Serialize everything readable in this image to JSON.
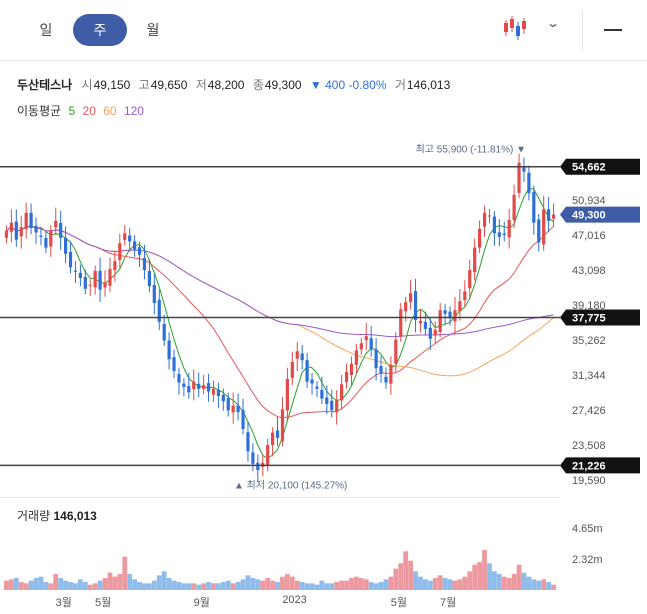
{
  "tabs": [
    {
      "label": "일",
      "active": false
    },
    {
      "label": "주",
      "active": true
    },
    {
      "label": "월",
      "active": false
    }
  ],
  "icons": {
    "chart_type": "candlestick-icon",
    "dropdown": "chevron-down-icon",
    "menu": "minus-icon"
  },
  "quote": {
    "name": "두산테스나",
    "open_label": "시",
    "open": "49,150",
    "high_label": "고",
    "high": "49,650",
    "low_label": "저",
    "low": "48,200",
    "close_label": "종",
    "close": "49,300",
    "change": "▼ 400 -0.80%",
    "volume_label": "거",
    "volume": "146,013"
  },
  "moving_average": {
    "label": "이동평균",
    "periods": [
      {
        "value": "5",
        "color": "#2ca02c"
      },
      {
        "value": "20",
        "color": "#e8575a"
      },
      {
        "value": "60",
        "color": "#f5a35c"
      },
      {
        "value": "120",
        "color": "#9b59d0"
      }
    ]
  },
  "volume_panel": {
    "label": "거래량",
    "value": "146,013",
    "ticks": [
      "4.65m",
      "2.32m"
    ]
  },
  "chart_data": {
    "type": "candlestick",
    "x_ticks": [
      "3월",
      "5월",
      "9월",
      "2023",
      "5월",
      "7월"
    ],
    "y_ticks": [
      "50,934",
      "47,016",
      "43,098",
      "39,180",
      "35,262",
      "31,344",
      "27,426",
      "23,508",
      "19,590"
    ],
    "ylim": [
      19590,
      57000
    ],
    "highlights": [
      {
        "label": "54,662",
        "value": 54662,
        "style": "dark"
      },
      {
        "label": "49,300",
        "value": 49300,
        "style": "blue"
      },
      {
        "label": "37,775",
        "value": 37775,
        "style": "dark"
      },
      {
        "label": "21,226",
        "value": 21226,
        "style": "dark"
      }
    ],
    "annotations": {
      "high": {
        "text": "최고 55,900 (-11.81%)",
        "value": 55900
      },
      "low": {
        "text": "최저 20,100 (145.27%)",
        "value": 20100
      }
    },
    "closes": [
      47500,
      48400,
      46500,
      47900,
      49500,
      47800,
      47300,
      46800,
      45600,
      47500,
      48600,
      46700,
      44900,
      43400,
      42900,
      42200,
      41000,
      41400,
      43000,
      40900,
      41700,
      43200,
      44100,
      46100,
      47200,
      46300,
      45400,
      44800,
      43100,
      41300,
      39400,
      37300,
      35200,
      33100,
      31800,
      30500,
      30000,
      29400,
      30600,
      29800,
      30200,
      29500,
      29800,
      29000,
      28400,
      27400,
      27900,
      27200,
      25300,
      22800,
      21400,
      20700,
      21500,
      23500,
      24900,
      24300,
      27500,
      30900,
      32800,
      34000,
      33000,
      30600,
      30400,
      29800,
      28700,
      28100,
      27400,
      28500,
      30300,
      31700,
      32600,
      34100,
      34900,
      35700,
      34200,
      32100,
      31500,
      30500,
      32500,
      35300,
      38700,
      39500,
      40500,
      37500,
      37400,
      36500,
      35400,
      36400,
      38600,
      38200,
      37700,
      38600,
      39600,
      40700,
      43100,
      45600,
      47700,
      49500,
      49200,
      47200,
      46800,
      47000,
      48700,
      51500,
      55100,
      54100,
      51700,
      48400,
      46200,
      49900,
      48600,
      49300
    ],
    "volume_ticks_max": 4650000,
    "volumes": [
      0.7,
      0.8,
      0.9,
      0.6,
      0.5,
      0.7,
      0.9,
      1.0,
      0.6,
      0.5,
      1.2,
      0.9,
      0.7,
      0.6,
      0.5,
      0.8,
      0.6,
      0.4,
      0.5,
      0.7,
      0.9,
      1.3,
      1.0,
      1.2,
      2.5,
      1.2,
      0.8,
      0.6,
      0.5,
      0.5,
      0.7,
      1.1,
      1.4,
      0.9,
      0.7,
      0.6,
      0.5,
      0.5,
      0.5,
      0.4,
      0.5,
      0.6,
      0.5,
      0.5,
      0.6,
      0.7,
      0.5,
      0.6,
      0.8,
      1.1,
      0.9,
      0.8,
      0.7,
      0.9,
      0.7,
      0.6,
      1.0,
      1.2,
      1.0,
      0.7,
      0.6,
      0.5,
      0.5,
      0.4,
      0.7,
      0.5,
      0.5,
      0.6,
      0.7,
      0.7,
      0.9,
      1.0,
      0.9,
      0.8,
      0.6,
      0.5,
      0.6,
      0.8,
      1.0,
      1.6,
      2.0,
      2.9,
      2.2,
      1.4,
      1.0,
      0.8,
      0.7,
      0.9,
      1.1,
      0.9,
      0.8,
      0.7,
      0.8,
      1.0,
      1.4,
      1.9,
      2.1,
      3.0,
      2.0,
      1.4,
      1.2,
      1.0,
      0.9,
      1.2,
      1.9,
      1.3,
      1.0,
      0.8,
      0.7,
      0.8,
      0.6,
      0.4
    ]
  }
}
